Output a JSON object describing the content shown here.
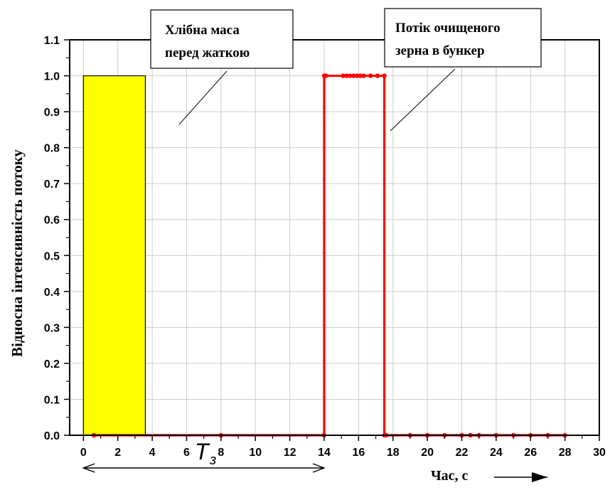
{
  "chart_data": {
    "type": "line",
    "title": "",
    "xlabel": "Час, с",
    "ylabel": "Відносна інтенсивність потоку",
    "xlim": [
      -0.8,
      30
    ],
    "ylim": [
      0,
      1.1
    ],
    "x_ticks": [
      0,
      2,
      4,
      6,
      8,
      10,
      12,
      14,
      16,
      18,
      20,
      22,
      24,
      26,
      28,
      30
    ],
    "x_tick_labels": [
      "0",
      "2",
      "4",
      "6",
      "8",
      "10",
      "12",
      "14",
      "16",
      "18",
      "20",
      "22",
      "24",
      "26",
      "28",
      "30"
    ],
    "y_ticks": [
      0,
      0.1,
      0.2,
      0.3,
      0.4,
      0.5,
      0.6,
      0.7,
      0.8,
      0.9,
      1.0,
      1.1
    ],
    "y_tick_labels": [
      "0.0",
      "0.1",
      "0.2",
      "0.3",
      "0.4",
      "0.5",
      "0.6",
      "0.7",
      "0.8",
      "0.9",
      "1.0",
      "1.1"
    ],
    "grid": true,
    "series": [
      {
        "type": "area",
        "color": "#ffff00",
        "x": [
          0,
          0,
          3.6,
          3.6
        ],
        "y": [
          0,
          1.0,
          1.0,
          0
        ]
      },
      {
        "type": "line-markers",
        "color": "#ff0000",
        "x": [
          0.6,
          8,
          14,
          14,
          14.1,
          15.1,
          15.3,
          15.5,
          15.7,
          15.9,
          16.1,
          16.3,
          16.7,
          17.1,
          17.5,
          17.5,
          17.6,
          19,
          20,
          21,
          22,
          22.5,
          23,
          24,
          25,
          26,
          27,
          28
        ],
        "y": [
          0,
          0,
          0,
          1.0,
          1.0,
          1.0,
          1.0,
          1.0,
          1.0,
          1.0,
          1.0,
          1.0,
          1.0,
          1.0,
          1.0,
          0,
          0,
          0,
          0,
          0,
          0,
          0,
          0,
          0,
          0,
          0,
          0,
          0
        ]
      }
    ],
    "annotations": [
      {
        "lines": [
          "Хлібна маса",
          "перед жаткою"
        ]
      },
      {
        "lines": [
          "Потік очищеного",
          "зерна в бункер"
        ]
      }
    ],
    "interval_label": {
      "main": "T",
      "sub": "з",
      "from": 0,
      "to": 14
    }
  }
}
